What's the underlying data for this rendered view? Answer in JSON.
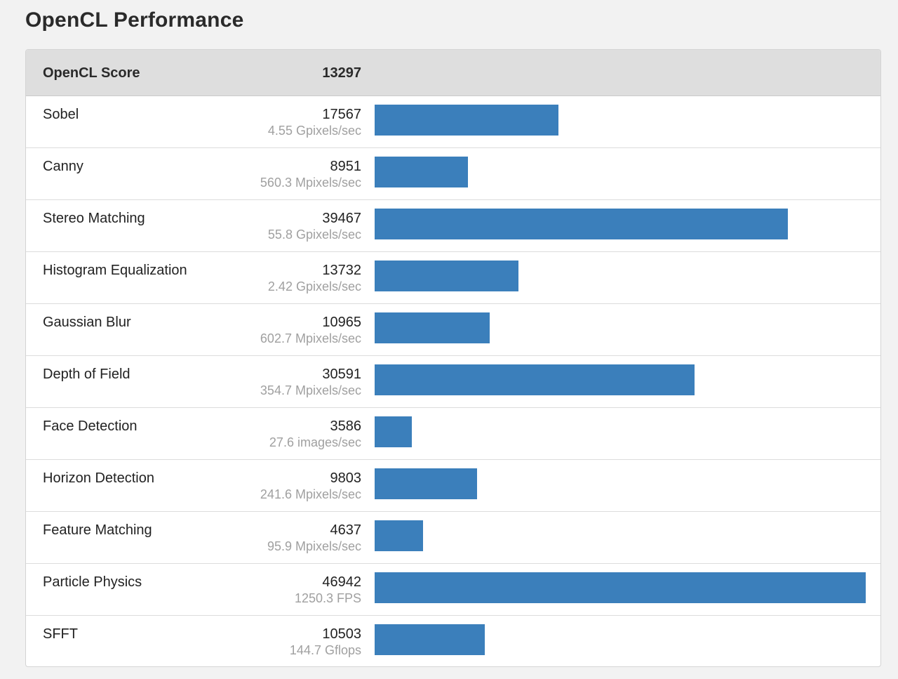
{
  "page": {
    "title": "OpenCL Performance"
  },
  "header": {
    "label": "OpenCL Score",
    "score": "13297"
  },
  "colors": {
    "bar": "#3b7fbb",
    "header_bg": "#dedede",
    "unit_text": "#a0a0a0"
  },
  "chart_data": {
    "type": "bar",
    "orientation": "horizontal",
    "title": "OpenCL Performance",
    "overall_label": "OpenCL Score",
    "overall_score": 13297,
    "xlim": [
      0,
      46942
    ],
    "categories": [
      "Sobel",
      "Canny",
      "Stereo Matching",
      "Histogram Equalization",
      "Gaussian Blur",
      "Depth of Field",
      "Face Detection",
      "Horizon Detection",
      "Feature Matching",
      "Particle Physics",
      "SFFT"
    ],
    "values": [
      17567,
      8951,
      39467,
      13732,
      10965,
      30591,
      3586,
      9803,
      4637,
      46942,
      10503
    ],
    "units": [
      "4.55 Gpixels/sec",
      "560.3 Mpixels/sec",
      "55.8 Gpixels/sec",
      "2.42 Gpixels/sec",
      "602.7 Mpixels/sec",
      "354.7 Mpixels/sec",
      "27.6 images/sec",
      "241.6 Mpixels/sec",
      "95.9 Mpixels/sec",
      "1250.3 FPS",
      "144.7 Gflops"
    ]
  }
}
